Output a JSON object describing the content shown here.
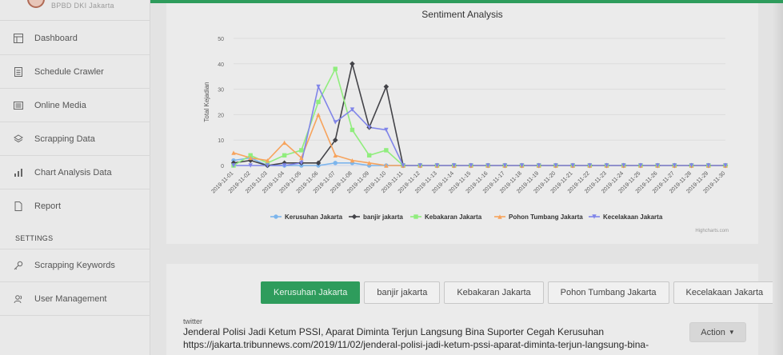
{
  "app": {
    "logo_text": "BPBD DKI Jakarta"
  },
  "sidebar": {
    "items": [
      {
        "label": "Dashboard",
        "icon": "table-icon"
      },
      {
        "label": "Schedule Crawler",
        "icon": "list-icon"
      },
      {
        "label": "Online Media",
        "icon": "newspaper-icon"
      },
      {
        "label": "Scrapping Data",
        "icon": "layers-icon"
      },
      {
        "label": "Chart Analysis Data",
        "icon": "bar-chart-icon"
      },
      {
        "label": "Report",
        "icon": "file-icon"
      }
    ],
    "settings_label": "SETTINGS",
    "settings_items": [
      {
        "label": "Scrapping Keywords",
        "icon": "key-icon"
      },
      {
        "label": "User Management",
        "icon": "users-icon"
      }
    ]
  },
  "chart_data": {
    "type": "line",
    "title": "Sentiment Analysis",
    "xlabel": "",
    "ylabel": "Total Kejadian",
    "ylim": [
      0,
      50
    ],
    "yticks": [
      0,
      10,
      20,
      30,
      40,
      50
    ],
    "grid": true,
    "legend_position": "bottom",
    "credit": "Highcharts.com",
    "x": [
      "2019-11-01",
      "2019-11-02",
      "2019-11-03",
      "2019-11-04",
      "2019-11-05",
      "2019-11-06",
      "2019-11-07",
      "2019-11-08",
      "2019-11-09",
      "2019-11-10",
      "2019-11-11",
      "2019-11-12",
      "2019-11-13",
      "2019-11-14",
      "2019-11-15",
      "2019-11-16",
      "2019-11-17",
      "2019-11-18",
      "2019-11-19",
      "2019-11-20",
      "2019-11-21",
      "2019-11-22",
      "2019-11-23",
      "2019-11-24",
      "2019-11-25",
      "2019-11-26",
      "2019-11-27",
      "2019-11-28",
      "2019-11-29",
      "2019-11-30"
    ],
    "series": [
      {
        "name": "Kerusuhan Jakarta",
        "color": "#7cb5ec",
        "marker": "circle",
        "values": [
          2,
          3,
          0,
          0,
          0,
          0,
          1,
          1,
          0,
          0,
          0,
          0,
          0,
          0,
          0,
          0,
          0,
          0,
          0,
          0,
          0,
          0,
          0,
          0,
          0,
          0,
          0,
          0,
          0,
          0
        ]
      },
      {
        "name": "banjir jakarta",
        "color": "#434348",
        "marker": "diamond",
        "values": [
          1,
          2,
          0,
          1,
          1,
          1,
          10,
          40,
          15,
          31,
          0,
          0,
          0,
          0,
          0,
          0,
          0,
          0,
          0,
          0,
          0,
          0,
          0,
          0,
          0,
          0,
          0,
          0,
          0,
          0
        ]
      },
      {
        "name": "Kebakaran Jakarta",
        "color": "#90ed7d",
        "marker": "square",
        "values": [
          0,
          4,
          1,
          4,
          6,
          25,
          38,
          14,
          4,
          6,
          0,
          0,
          0,
          0,
          0,
          0,
          0,
          0,
          0,
          0,
          0,
          0,
          0,
          0,
          0,
          0,
          0,
          0,
          0,
          0
        ]
      },
      {
        "name": "Pohon Tumbang Jakarta",
        "color": "#f7a35c",
        "marker": "triangle",
        "values": [
          5,
          3,
          2,
          9,
          3,
          20,
          4,
          2,
          1,
          0,
          0,
          0,
          0,
          0,
          0,
          0,
          0,
          0,
          0,
          0,
          0,
          0,
          0,
          0,
          0,
          0,
          0,
          0,
          0,
          0
        ]
      },
      {
        "name": "Kecelakaan Jakarta",
        "color": "#8085e9",
        "marker": "triangle-down",
        "values": [
          0,
          0,
          0,
          0,
          1,
          31,
          17,
          22,
          15,
          14,
          0,
          0,
          0,
          0,
          0,
          0,
          0,
          0,
          0,
          0,
          0,
          0,
          0,
          0,
          0,
          0,
          0,
          0,
          0,
          0
        ]
      }
    ]
  },
  "tabs": [
    {
      "label": "Kerusuhan Jakarta",
      "active": true
    },
    {
      "label": "banjir jakarta",
      "active": false
    },
    {
      "label": "Kebakaran Jakarta",
      "active": false
    },
    {
      "label": "Pohon Tumbang Jakarta",
      "active": false
    },
    {
      "label": "Kecelakaan Jakarta",
      "active": false
    }
  ],
  "post": {
    "source": "twitter",
    "title": "Jenderal Polisi Jadi Ketum PSSI, Aparat Diminta Terjun Langsung Bina Suporter Cegah Kerusuhan",
    "link": "https://jakarta.tribunnews.com/2019/11/02/jenderal-polisi-jadi-ketum-pssi-aparat-diminta-terjun-langsung-bina-",
    "action_label": "Action"
  },
  "colors": {
    "accent": "#2e9c5c",
    "sidebar_bg": "#e9e9e9"
  }
}
